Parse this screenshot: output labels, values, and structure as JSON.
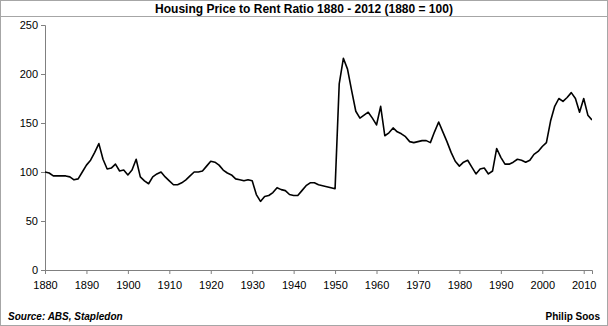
{
  "chart_data": {
    "type": "line",
    "title": "Housing Price to Rent Ratio 1880 - 2012 (1880 = 100)",
    "annotations": [
      "Source: ABS, Stapledon",
      "Philip Soos"
    ],
    "color": "#000000",
    "x": [
      1880,
      1881,
      1882,
      1883,
      1884,
      1885,
      1886,
      1887,
      1888,
      1889,
      1890,
      1891,
      1892,
      1893,
      1894,
      1895,
      1896,
      1897,
      1898,
      1899,
      1900,
      1901,
      1902,
      1903,
      1904,
      1905,
      1906,
      1907,
      1908,
      1909,
      1910,
      1911,
      1912,
      1913,
      1914,
      1915,
      1916,
      1917,
      1918,
      1919,
      1920,
      1921,
      1922,
      1923,
      1924,
      1925,
      1926,
      1927,
      1928,
      1929,
      1930,
      1931,
      1932,
      1933,
      1934,
      1935,
      1936,
      1937,
      1938,
      1939,
      1940,
      1941,
      1942,
      1943,
      1944,
      1945,
      1946,
      1947,
      1948,
      1949,
      1950,
      1951,
      1952,
      1953,
      1954,
      1955,
      1956,
      1957,
      1958,
      1959,
      1960,
      1961,
      1962,
      1963,
      1964,
      1965,
      1966,
      1967,
      1968,
      1969,
      1970,
      1971,
      1972,
      1973,
      1974,
      1975,
      1976,
      1977,
      1978,
      1979,
      1980,
      1981,
      1982,
      1983,
      1984,
      1985,
      1986,
      1987,
      1988,
      1989,
      1990,
      1991,
      1992,
      1993,
      1994,
      1995,
      1996,
      1997,
      1998,
      1999,
      2000,
      2001,
      2002,
      2003,
      2004,
      2005,
      2006,
      2007,
      2008,
      2009,
      2010,
      2011,
      2012
    ],
    "values": [
      100,
      99,
      96,
      96,
      96,
      96,
      95,
      92,
      93,
      100,
      107,
      112,
      120,
      129,
      113,
      103,
      104,
      108,
      101,
      102,
      97,
      102,
      113,
      95,
      91,
      88,
      95,
      98,
      100,
      95,
      91,
      87,
      87,
      89,
      92,
      96,
      100,
      100,
      101,
      106,
      111,
      110,
      107,
      102,
      99,
      97,
      93,
      92,
      91,
      92,
      91,
      77,
      70,
      75,
      76,
      79,
      84,
      82,
      81,
      77,
      76,
      76,
      81,
      86,
      89,
      89,
      87,
      86,
      85,
      84,
      83,
      190,
      216,
      205,
      183,
      162,
      155,
      158,
      161,
      155,
      148,
      167,
      137,
      140,
      145,
      141,
      139,
      136,
      131,
      130,
      131,
      132,
      132,
      130,
      141,
      151,
      141,
      131,
      120,
      111,
      106,
      110,
      112,
      105,
      98,
      103,
      104,
      98,
      101,
      124,
      115,
      108,
      108,
      110,
      113,
      112,
      110,
      112,
      118,
      121,
      126,
      130,
      152,
      167,
      175,
      172,
      176,
      181,
      175,
      161,
      175,
      158,
      153
    ],
    "xlim": [
      1880,
      2012
    ],
    "xticks": [
      1880,
      1890,
      1900,
      1910,
      1920,
      1930,
      1940,
      1950,
      1960,
      1970,
      1980,
      1990,
      2000,
      2010
    ],
    "ylim": [
      0,
      250
    ],
    "yticks": [
      0,
      50,
      100,
      150,
      200,
      250
    ],
    "grid": false
  }
}
